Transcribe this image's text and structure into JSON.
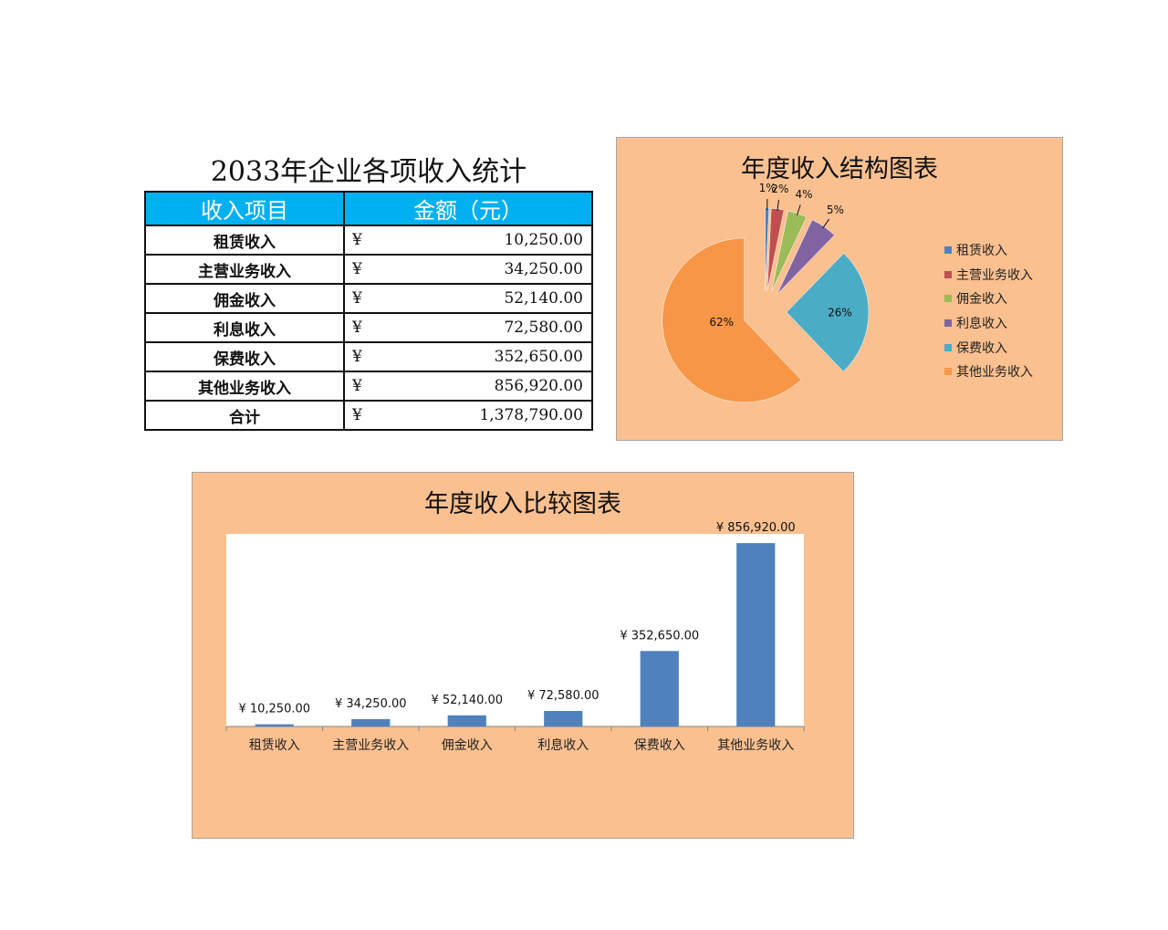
{
  "table": {
    "title": "2033年企业各项收入统计",
    "headers": [
      "收入项目",
      "金额（元）"
    ],
    "currency_symbol": "¥",
    "rows": [
      {
        "name": "租赁收入",
        "amount": "10,250.00"
      },
      {
        "name": "主营业务收入",
        "amount": "34,250.00"
      },
      {
        "name": "佣金收入",
        "amount": "52,140.00"
      },
      {
        "name": "利息收入",
        "amount": "72,580.00"
      },
      {
        "name": "保费收入",
        "amount": "352,650.00"
      },
      {
        "name": "其他业务收入",
        "amount": "856,920.00"
      },
      {
        "name": "合计",
        "amount": "1,378,790.00"
      }
    ]
  },
  "chart_data": [
    {
      "type": "pie",
      "title": "年度收入结构图表",
      "categories": [
        "租赁收入",
        "主营业务收入",
        "佣金收入",
        "利息收入",
        "保费收入",
        "其他业务收入"
      ],
      "values": [
        10250,
        34250,
        52140,
        72580,
        352650,
        856920
      ],
      "labels": [
        "1%",
        "2%",
        "4%",
        "5%",
        "26%",
        "62%"
      ],
      "colors": [
        "#4f81bd",
        "#c0504d",
        "#9bbb59",
        "#8064a2",
        "#4bacc6",
        "#f79646"
      ],
      "exploded": true,
      "legend": "right"
    },
    {
      "type": "bar",
      "title": "年度收入比较图表",
      "categories": [
        "租赁收入",
        "主营业务收入",
        "佣金收入",
        "利息收入",
        "保费收入",
        "其他业务收入"
      ],
      "values": [
        10250,
        34250,
        52140,
        72580,
        352650,
        856920
      ],
      "data_labels": [
        "¥ 10,250.00",
        "¥ 34,250.00",
        "¥ 52,140.00",
        "¥ 72,580.00",
        "¥ 352,650.00",
        "¥ 856,920.00"
      ],
      "color": "#4f81bd",
      "ylim": [
        0,
        900000
      ],
      "grid": false,
      "legend": "none"
    }
  ]
}
